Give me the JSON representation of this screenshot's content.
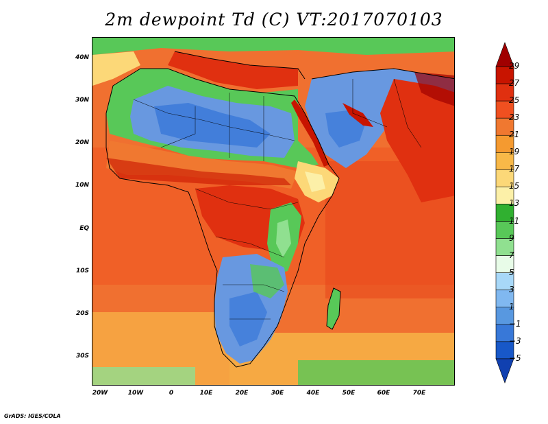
{
  "title": "2m dewpoint Td (C) VT:2017070103",
  "credit": "GrADS: IGES/COLA",
  "lat_labels": [
    "40N",
    "30N",
    "20N",
    "10N",
    "EQ",
    "10S",
    "20S",
    "30S"
  ],
  "lon_labels": [
    "20W",
    "10W",
    "0",
    "10E",
    "20E",
    "30E",
    "40E",
    "50E",
    "60E",
    "70E"
  ],
  "colorbar": {
    "labels": [
      "29",
      "27",
      "25",
      "23",
      "21",
      "19",
      "17",
      "15",
      "13",
      "11",
      "9",
      "7",
      "5",
      "3",
      "1",
      "−1",
      "−3",
      "−5"
    ],
    "colors": [
      "#a00000",
      "#c81400",
      "#e03010",
      "#f05020",
      "#f07830",
      "#f59a30",
      "#f8b848",
      "#fcd878",
      "#fcf0a8",
      "#30b030",
      "#58c858",
      "#90e090",
      "#e8fce8",
      "#a8d8f8",
      "#80b8f0",
      "#5898e0",
      "#3878d8",
      "#1858c8",
      "#1040b0"
    ]
  },
  "colors": {
    "ocean": "#f07030",
    "sahara_blue": "#6898e0",
    "green": "#58c858",
    "yellow": "#fcd878",
    "deep_red": "#c81400",
    "border": "#000000"
  }
}
